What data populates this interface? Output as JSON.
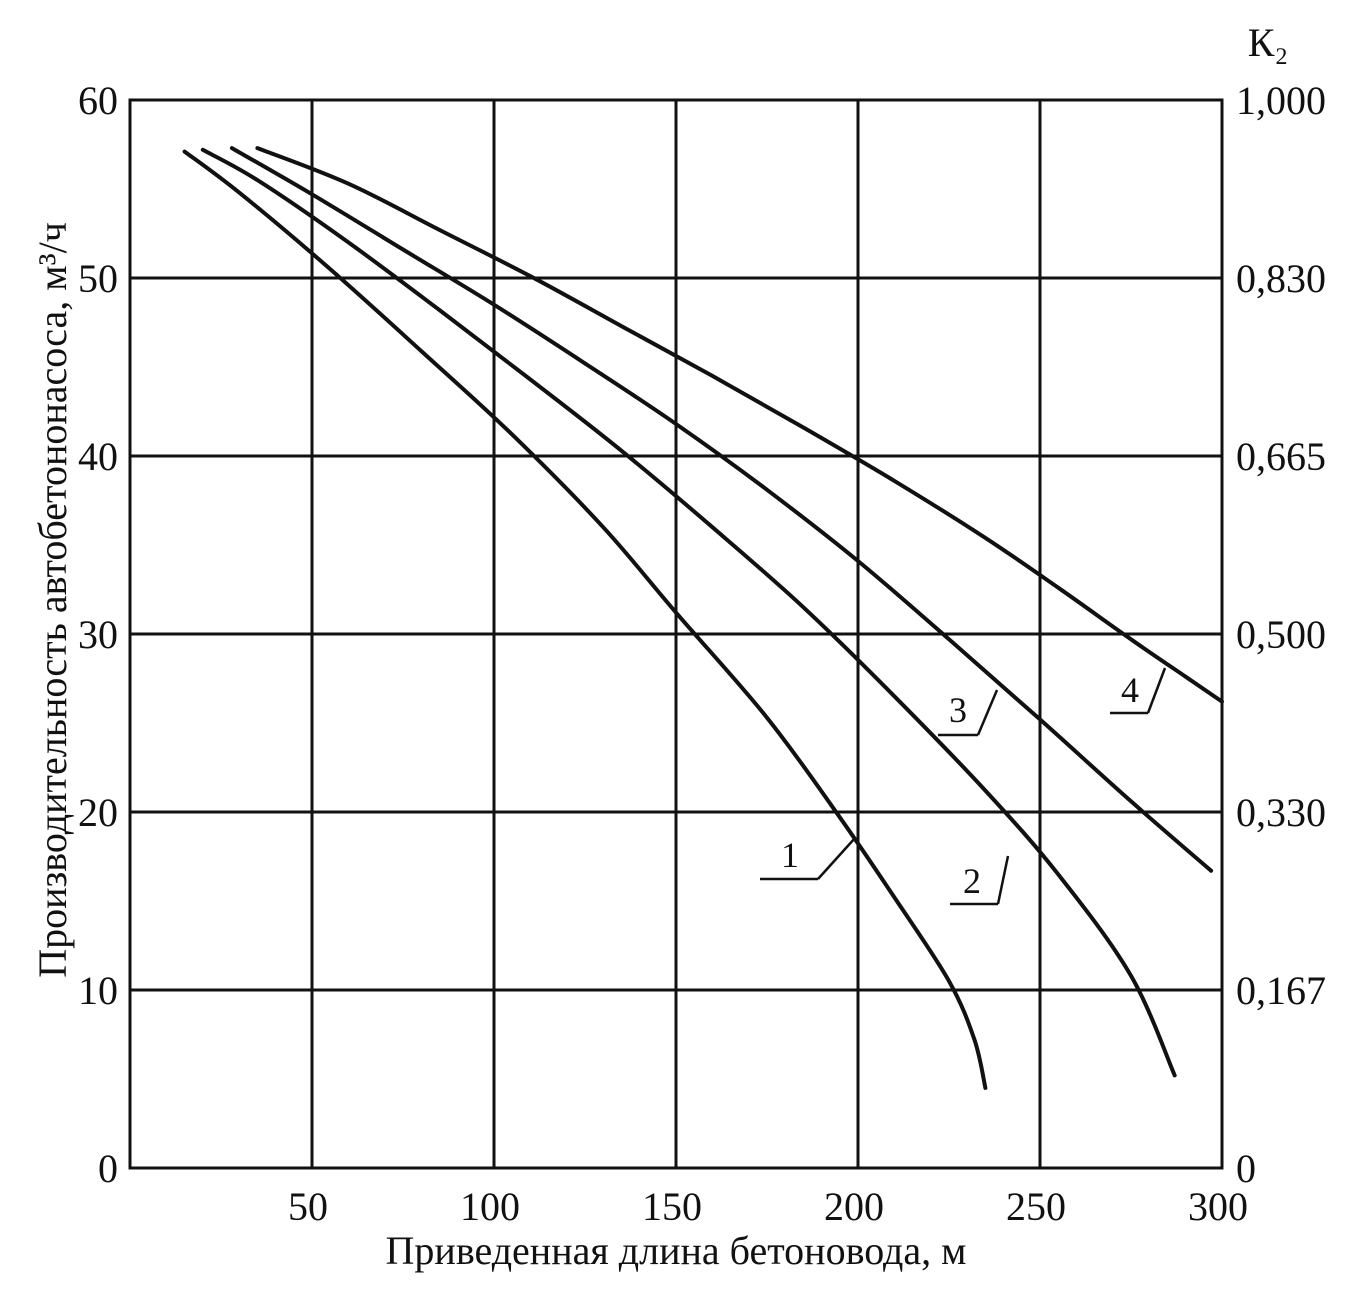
{
  "chart_data": {
    "type": "line",
    "title": "",
    "xlabel": "Приведенная длина бетоновода, м",
    "ylabel_left": "Производительность автобетононасоса, м³/ч",
    "ylabel_right": "К₂",
    "xlim": [
      0,
      300
    ],
    "ylim": [
      0,
      60
    ],
    "grid": true,
    "x_ticks": [
      {
        "value": 50,
        "label": "50"
      },
      {
        "value": 100,
        "label": "100"
      },
      {
        "value": 150,
        "label": "150"
      },
      {
        "value": 200,
        "label": "200"
      },
      {
        "value": 250,
        "label": "250"
      },
      {
        "value": 300,
        "label": "300"
      }
    ],
    "y_left_ticks": [
      {
        "value": 0,
        "label": "0"
      },
      {
        "value": 10,
        "label": "10"
      },
      {
        "value": 20,
        "label": "20"
      },
      {
        "value": 30,
        "label": "30"
      },
      {
        "value": 40,
        "label": "40"
      },
      {
        "value": 50,
        "label": "50"
      },
      {
        "value": 60,
        "label": "60"
      }
    ],
    "y_right_ticks": [
      {
        "value": 0,
        "label": "0"
      },
      {
        "value": 10,
        "label": "0,167"
      },
      {
        "value": 20,
        "label": "0,330"
      },
      {
        "value": 30,
        "label": "0,500"
      },
      {
        "value": 40,
        "label": "0,665"
      },
      {
        "value": 50,
        "label": "0,830"
      },
      {
        "value": 60,
        "label": "1,000"
      }
    ],
    "series": [
      {
        "name": "1",
        "x": [
          15,
          30,
          55,
          80,
          105,
          130,
          150,
          175,
          195,
          210,
          225,
          232,
          235
        ],
        "y": [
          57.1,
          54.8,
          50.5,
          45.9,
          41.2,
          36.0,
          31.2,
          25.3,
          19.7,
          15.2,
          10.5,
          7.2,
          4.5
        ]
      },
      {
        "name": "2",
        "x": [
          20,
          35,
          60,
          85,
          110,
          135,
          160,
          185,
          210,
          235,
          255,
          275,
          287
        ],
        "y": [
          57.2,
          55.5,
          52.0,
          48.2,
          44.3,
          40.3,
          36.0,
          31.5,
          26.5,
          21.2,
          16.5,
          10.8,
          5.2
        ]
      },
      {
        "name": "3",
        "x": [
          28,
          50,
          75,
          100,
          125,
          150,
          175,
          200,
          225,
          250,
          275,
          297
        ],
        "y": [
          57.3,
          54.7,
          51.6,
          48.5,
          45.2,
          41.8,
          38.1,
          34.1,
          29.7,
          25.2,
          20.6,
          16.7
        ]
      },
      {
        "name": "4",
        "x": [
          35,
          60,
          85,
          110,
          135,
          160,
          185,
          210,
          235,
          255,
          275,
          290,
          300
        ],
        "y": [
          57.3,
          55.3,
          52.7,
          50.1,
          47.3,
          44.5,
          41.6,
          38.6,
          35.4,
          32.6,
          29.7,
          27.6,
          26.2
        ]
      }
    ],
    "annotations": [
      {
        "text": "1",
        "series": "1"
      },
      {
        "text": "2",
        "series": "2"
      },
      {
        "text": "3",
        "series": "3"
      },
      {
        "text": "4",
        "series": "4"
      }
    ]
  }
}
